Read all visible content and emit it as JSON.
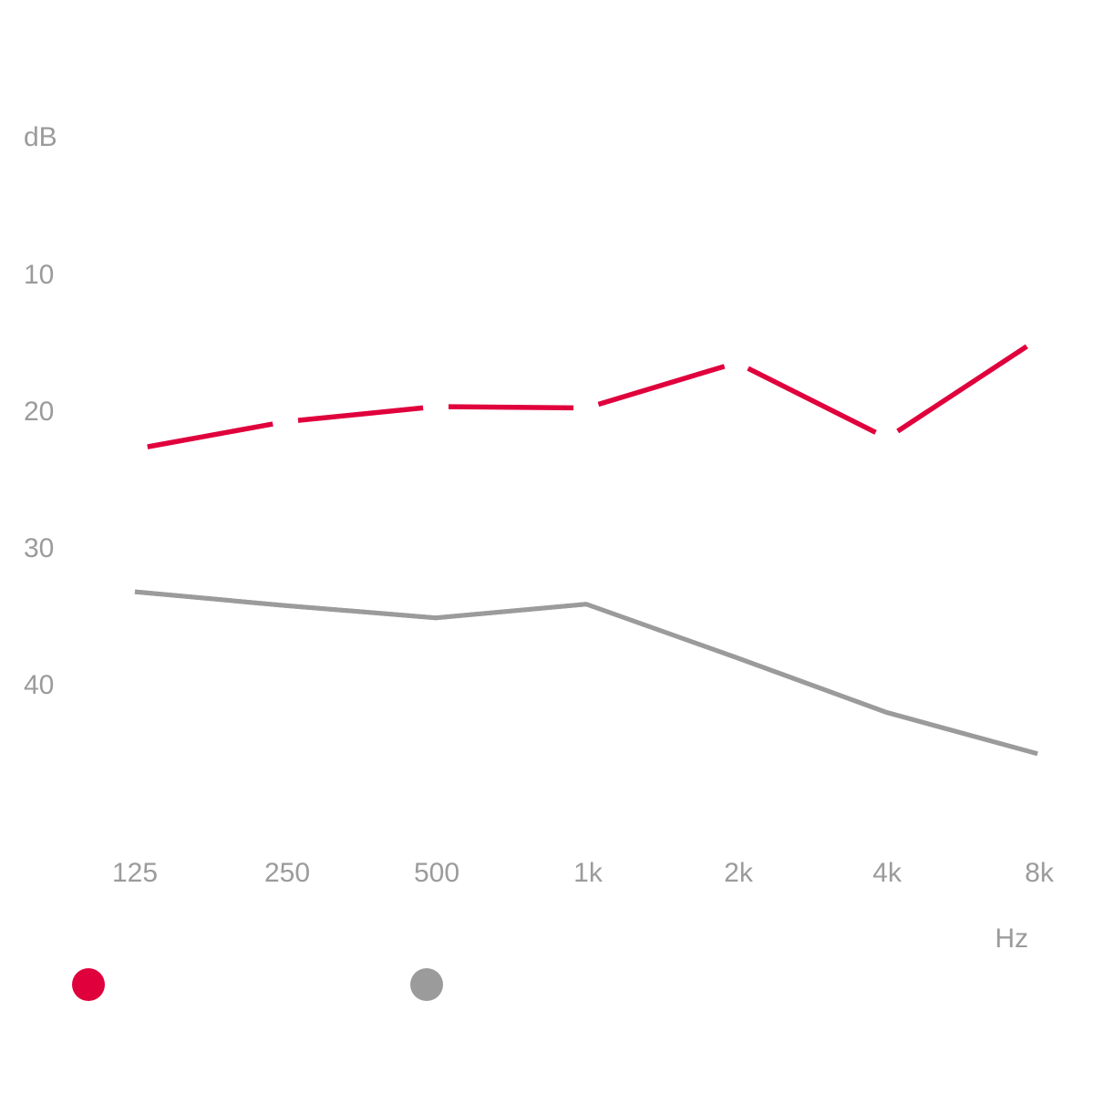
{
  "chart_data": {
    "type": "line",
    "ylabel": "dB",
    "xlabel": "Hz",
    "categories": [
      "125",
      "250",
      "500",
      "1k",
      "2k",
      "4k",
      "8k"
    ],
    "y_ticks": [
      "10",
      "20",
      "30",
      "40"
    ],
    "ylim": [
      0,
      50
    ],
    "y_inverted": true,
    "grid": "horizontal, top two lines only",
    "legend": "bottom-left, color markers only",
    "series": [
      {
        "color": "#e0003c",
        "style": "dashed",
        "values": [
          22.7,
          20.7,
          19.6,
          19.7,
          16.4,
          21.9,
          14.7
        ]
      },
      {
        "color": "#9b9b9b",
        "style": "solid",
        "values": [
          33.1,
          34.1,
          35.0,
          34.0,
          37.9,
          41.9,
          44.9
        ]
      }
    ]
  }
}
